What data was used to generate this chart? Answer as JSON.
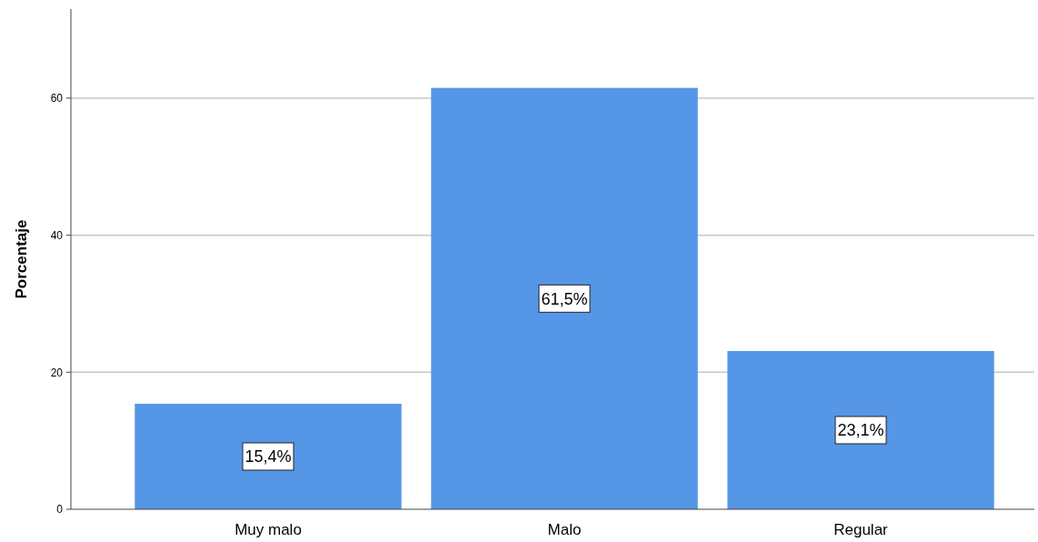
{
  "chart_data": {
    "type": "bar",
    "ylabel": "Porcentaje",
    "categories": [
      "Muy malo",
      "Malo",
      "Regular"
    ],
    "values": [
      15.4,
      61.5,
      23.1
    ],
    "color": "#5596e6",
    "value_labels": [
      "15,4%",
      "61,5%",
      "23,1%"
    ],
    "ylim": [
      0,
      73
    ],
    "yticks": [
      0,
      20,
      40,
      60
    ],
    "grid": "y"
  }
}
